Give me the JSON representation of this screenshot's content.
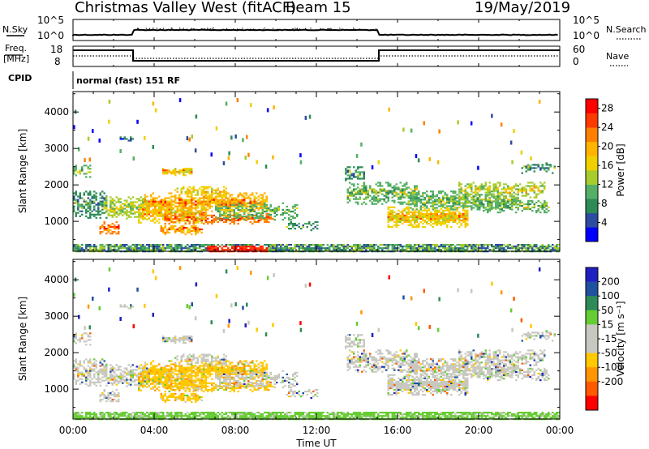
{
  "header": {
    "title": "Christmas Valley West (fitACF)",
    "beam": "Beam 15",
    "date": "19/May/2019"
  },
  "strip_nsky": {
    "left_label": "N.Sky",
    "y_top": "10^5",
    "y_bottom": "10^0",
    "right_top": "10^5",
    "right_bottom": "10^0",
    "right_label": "N.Search"
  },
  "strip_freq": {
    "left_label_1": "Freq.",
    "left_label_2": "[MHz]",
    "y_top": "18",
    "y_bottom": "8",
    "right_top": "60",
    "right_bottom": "0",
    "right_label": "Nave"
  },
  "strip_cpid": {
    "left_label": "CPID",
    "text": "normal (fast) 151 RF"
  },
  "colors": {
    "power": [
      "#0000ff",
      "#2b4ca0",
      "#2e8b57",
      "#55b065",
      "#a8cc2a",
      "#f0d000",
      "#ffb400",
      "#ff7f00",
      "#ff3a00",
      "#ff0000"
    ],
    "velocity": [
      "#2020c0",
      "#2050a0",
      "#2e8b57",
      "#66cc33",
      "#c8c8c0",
      "#c8c8c0",
      "#ffc800",
      "#ff9600",
      "#ff5a00",
      "#ff0000"
    ]
  },
  "chart_data": [
    {
      "type": "heatmap",
      "name": "power",
      "ylabel": "Slant Range [km]",
      "yticks": [
        "1000",
        "2000",
        "3000",
        "4000"
      ],
      "ylim": [
        180,
        4560
      ],
      "xlim": [
        0,
        24
      ],
      "colorbar_label": "Power [dB]",
      "colorbar_ticks": [
        "4",
        "8",
        "12",
        "16",
        "20",
        "24",
        "28"
      ],
      "colorbar_range": [
        0,
        30
      ]
    },
    {
      "type": "heatmap",
      "name": "velocity",
      "ylabel": "Slant Range [km]",
      "yticks": [
        "1000",
        "2000",
        "3000",
        "4000"
      ],
      "ylim": [
        180,
        4560
      ],
      "xlim": [
        0,
        24
      ],
      "colorbar_label": "Velocity [m s⁻¹]",
      "colorbar_ticks": [
        "200",
        "100",
        "50",
        "15",
        "-15",
        "-50",
        "-100",
        "-200"
      ]
    }
  ],
  "xaxis": {
    "ticks": [
      "00:00",
      "04:00",
      "08:00",
      "12:00",
      "16:00",
      "20:00",
      "00:00"
    ],
    "label": "Time UT"
  }
}
